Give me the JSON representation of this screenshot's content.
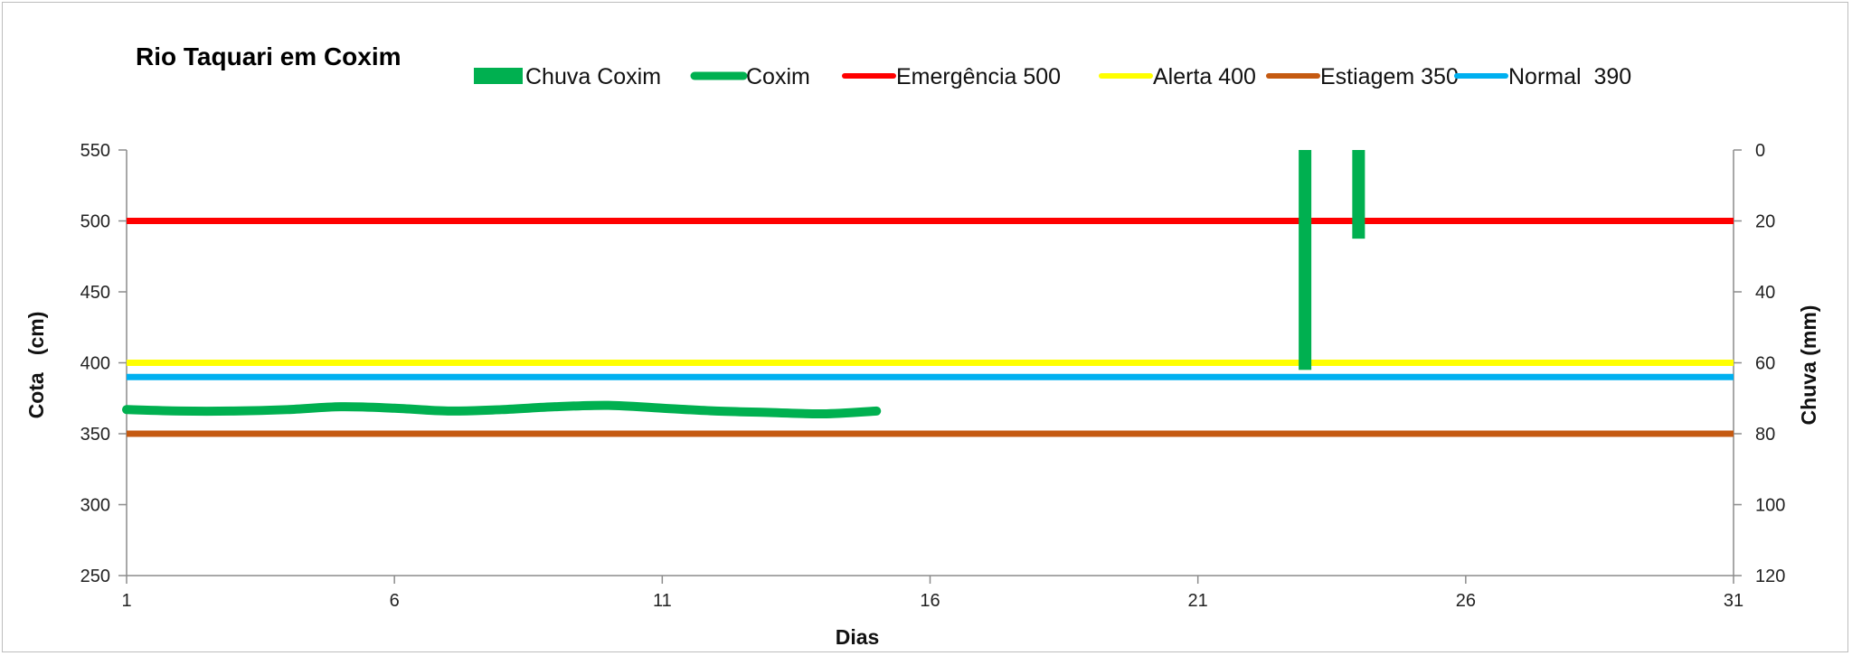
{
  "chart_data": {
    "type": "line",
    "title": "Rio Taquari em Coxim",
    "xlabel": "Dias",
    "ylabel": "Cota   (cm)",
    "y2label": "Chuva (mm)",
    "xlim": [
      1,
      31
    ],
    "ylim": [
      250,
      550
    ],
    "y2lim": [
      0,
      120
    ],
    "y2_inverted": true,
    "xticks": [
      1,
      6,
      11,
      16,
      21,
      26,
      31
    ],
    "yticks": [
      250,
      300,
      350,
      400,
      450,
      500,
      550
    ],
    "y2ticks": [
      0,
      20,
      40,
      60,
      80,
      100,
      120
    ],
    "grid": false,
    "legend_position": "top",
    "legend": [
      {
        "name": "Chuva Coxim",
        "color": "#00b050",
        "shape": "bar"
      },
      {
        "name": "Coxim",
        "color": "#00b050",
        "shape": "line"
      },
      {
        "name": "Emergência 500",
        "color": "#ff0000",
        "shape": "line"
      },
      {
        "name": "Alerta 400",
        "color": "#ffff00",
        "shape": "line"
      },
      {
        "name": "Estiagem 350",
        "color": "#c55a11",
        "shape": "line"
      },
      {
        "name": "Normal  390",
        "color": "#00b0f0",
        "shape": "line"
      }
    ],
    "series": [
      {
        "name": "Coxim",
        "axis": "left",
        "color": "#00b050",
        "x": [
          1,
          2,
          3,
          4,
          5,
          6,
          7,
          8,
          9,
          10,
          11,
          12,
          13,
          14,
          15
        ],
        "y": [
          367,
          366,
          366,
          367,
          369,
          368,
          366,
          367,
          369,
          370,
          368,
          366,
          365,
          364,
          366
        ]
      },
      {
        "name": "Emergência 500",
        "axis": "left",
        "color": "#ff0000",
        "constant": 500
      },
      {
        "name": "Alerta 400",
        "axis": "left",
        "color": "#ffff00",
        "constant": 400
      },
      {
        "name": "Normal  390",
        "axis": "left",
        "color": "#00b0f0",
        "constant": 390
      },
      {
        "name": "Estiagem 350",
        "axis": "left",
        "color": "#c55a11",
        "constant": 350
      },
      {
        "name": "Chuva Coxim",
        "axis": "right",
        "type": "bar",
        "color": "#00b050",
        "x": [
          23,
          24
        ],
        "y": [
          62,
          25
        ]
      }
    ]
  }
}
